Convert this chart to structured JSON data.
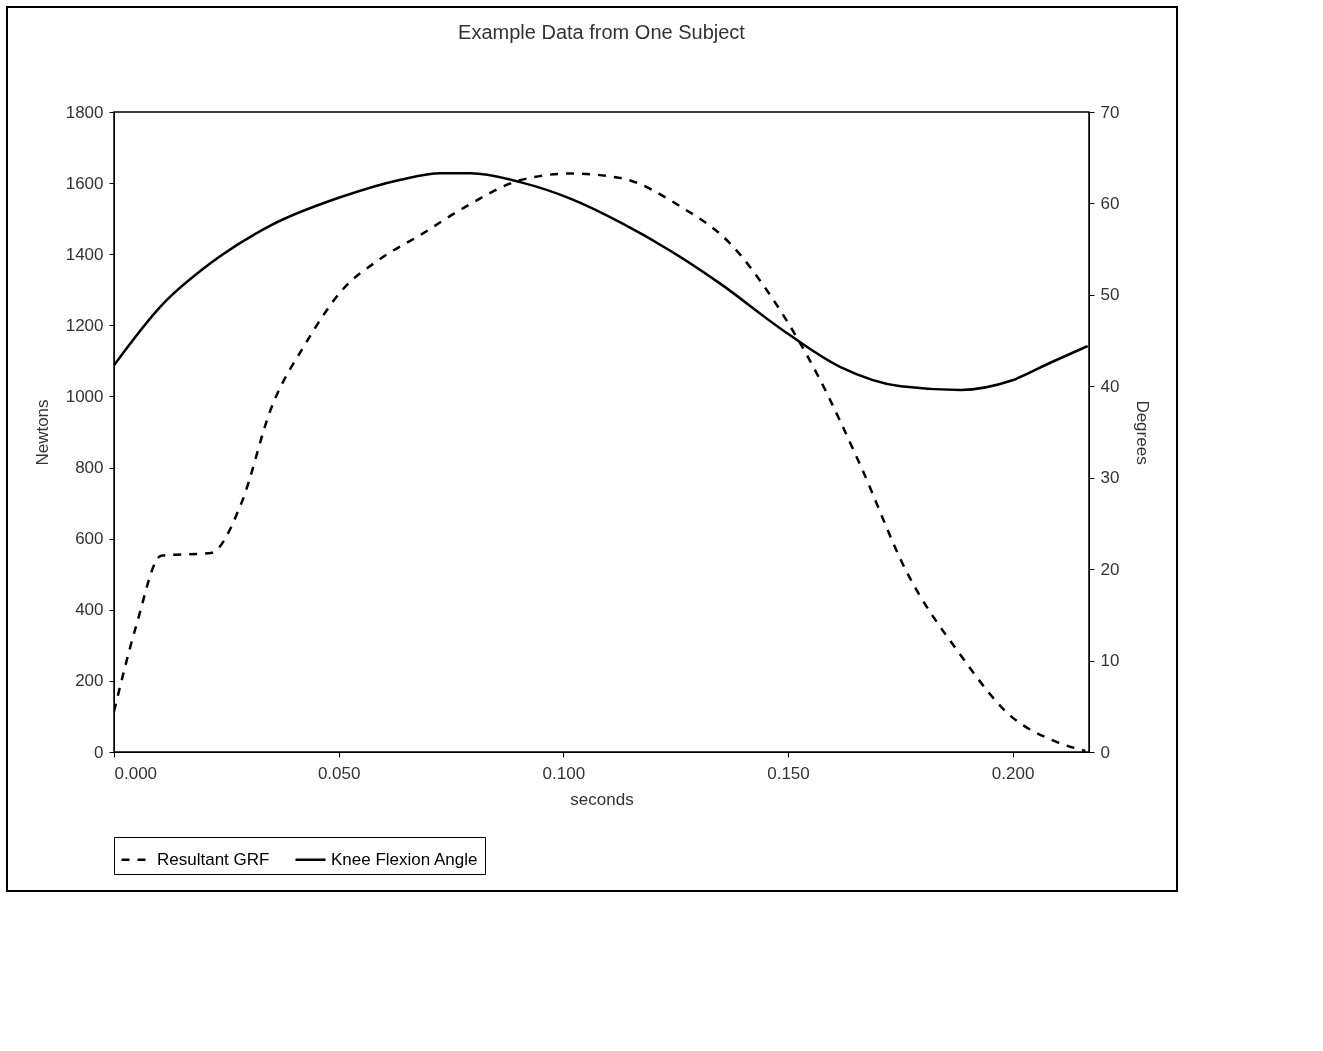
{
  "chart_data": {
    "type": "line",
    "title": "Example Data from One Subject",
    "xlabel": "seconds",
    "ylabel": "Newtons",
    "y2label": "Degrees",
    "xlim": [
      0,
      0.217
    ],
    "xticks": [
      {
        "value": 0,
        "label": "0.000"
      },
      {
        "value": 0.05,
        "label": "0.050"
      },
      {
        "value": 0.1,
        "label": "0.100"
      },
      {
        "value": 0.15,
        "label": "0.150"
      },
      {
        "value": 0.2,
        "label": "0.200"
      }
    ],
    "ylim": [
      0,
      1800
    ],
    "yticks": [
      0,
      200,
      400,
      600,
      800,
      1000,
      1200,
      1400,
      1600,
      1800
    ],
    "y2lim": [
      0,
      70
    ],
    "y2ticks": [
      0,
      10,
      20,
      30,
      40,
      50,
      60,
      70
    ],
    "grid": false,
    "legend": "bottom",
    "series": [
      {
        "name": "Resultant GRF",
        "color": "#000000",
        "line_style": "dashed",
        "x": [
          0,
          0.0049,
          0.0105,
          0.0216,
          0.0283,
          0.0349,
          0.0427,
          0.0505,
          0.0594,
          0.0683,
          0.0783,
          0.0906,
          0.1017,
          0.1128,
          0.1261,
          0.1373,
          0.1462,
          0.1562,
          0.1662,
          0.1762,
          0.1884,
          0.1996,
          0.2085,
          0.2162
        ],
        "values": [
          114,
          353,
          552,
          560,
          698,
          964,
          1150,
          1295,
          1388,
          1455,
          1534,
          1609,
          1627,
          1614,
          1534,
          1428,
          1282,
          1070,
          804,
          512,
          273,
          101,
          35,
          3
        ]
      },
      {
        "name": "Knee Flexion Angle",
        "color": "#000000",
        "line_style": "solid",
        "axis": "y2",
        "x": [
          0,
          0.0105,
          0.0216,
          0.0349,
          0.0505,
          0.0638,
          0.0727,
          0.0794,
          0.0906,
          0.1017,
          0.1128,
          0.1239,
          0.135,
          0.1484,
          0.1617,
          0.1751,
          0.1884,
          0.1996,
          0.2085,
          0.2167
        ],
        "values": [
          42.3,
          48.8,
          53.5,
          57.6,
          60.7,
          62.6,
          63.3,
          63.3,
          62.3,
          60.5,
          57.9,
          54.8,
          51.2,
          46.3,
          42.1,
          40,
          39.6,
          40.6,
          42.6,
          44.4
        ]
      }
    ]
  }
}
